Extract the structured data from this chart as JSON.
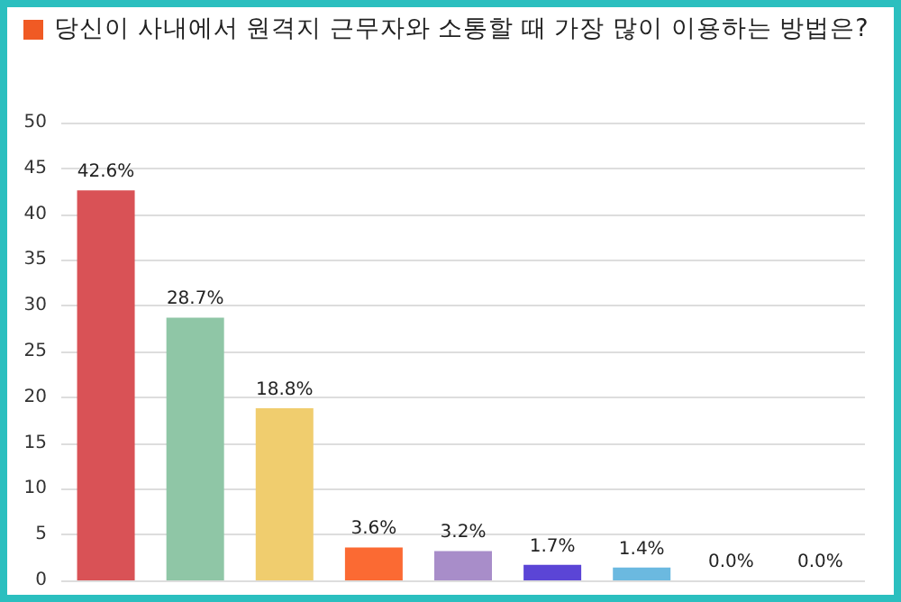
{
  "chart_data": {
    "type": "bar",
    "title": "당신이 사내에서 원격지 근무자와 소통할 때 가장 많이 이용하는 방법은?",
    "categories": [
      null,
      null,
      null,
      null,
      null,
      null,
      null,
      null,
      null
    ],
    "series": [
      {
        "values": [
          42.6,
          28.7,
          18.8,
          3.6,
          3.2,
          1.7,
          1.4,
          0.0,
          0.0
        ]
      }
    ],
    "colors": [
      "#d95256",
      "#8fc6a6",
      "#f0cd6e",
      "#fb6a33",
      "#a88dc9",
      "#5b45d6",
      "#6bb9e0",
      "#999999",
      "#999999"
    ],
    "value_labels": [
      "42.6%",
      "28.7%",
      "18.8%",
      "3.6%",
      "3.2%",
      "1.7%",
      "1.4%",
      "0.0%",
      "0.0%"
    ],
    "ylim": [
      0,
      50
    ],
    "yticks": [
      0,
      5,
      10,
      15,
      20,
      25,
      30,
      35,
      40,
      45,
      50
    ],
    "grid": "y"
  }
}
